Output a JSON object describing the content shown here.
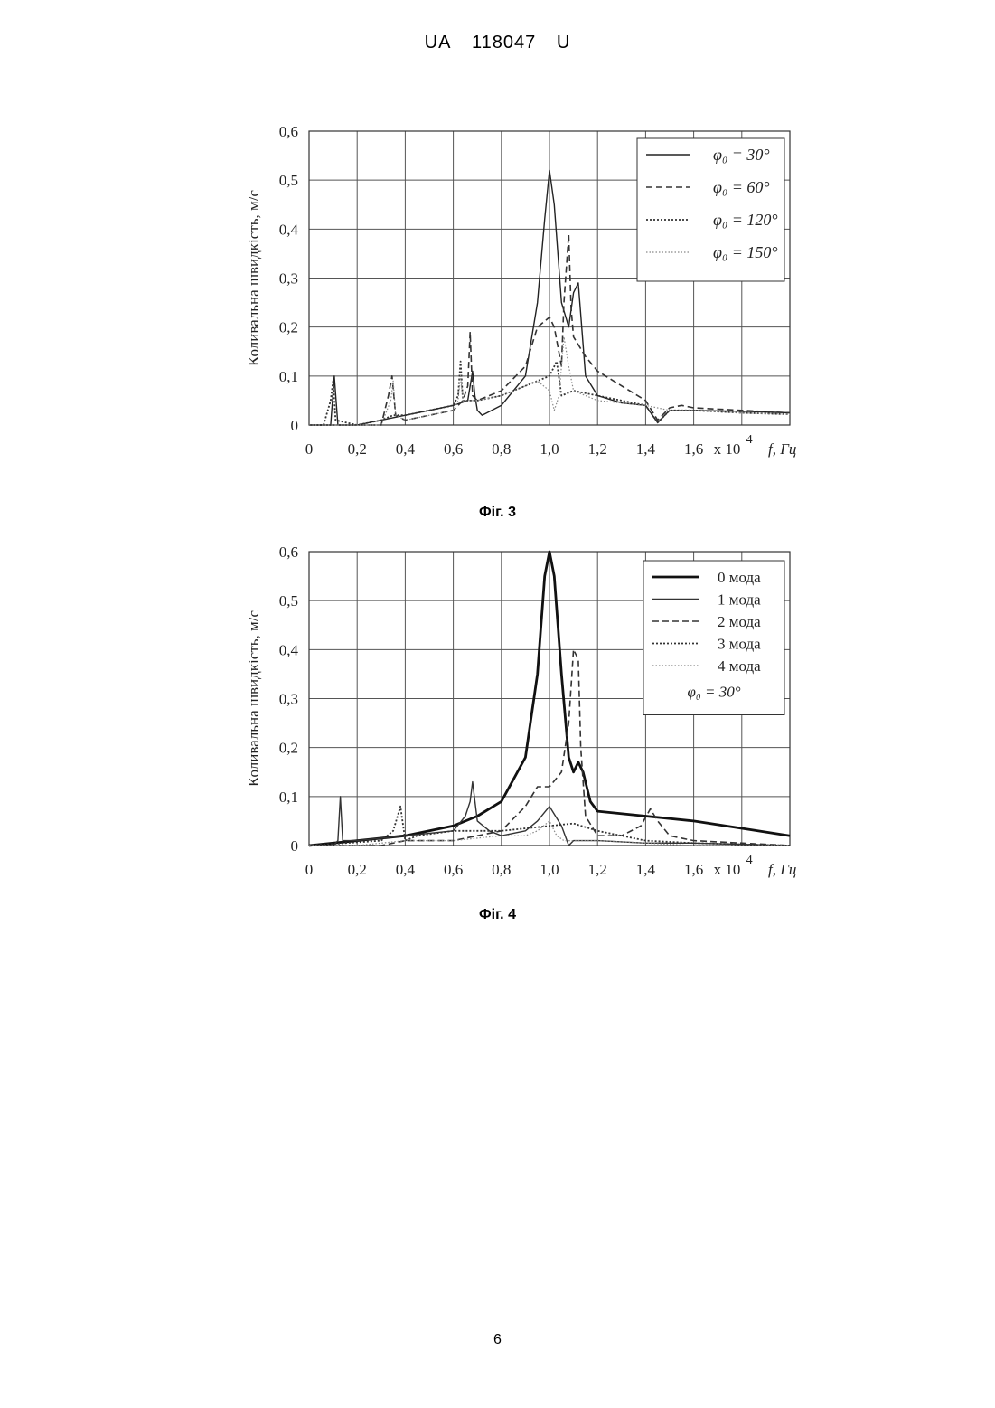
{
  "header": {
    "country": "UA",
    "number": "118047",
    "kind": "U"
  },
  "page_number": "6",
  "figures": [
    {
      "caption": "Фіг. 3"
    },
    {
      "caption": "Фіг. 4"
    }
  ],
  "chart_data": [
    {
      "type": "line",
      "title": "",
      "ylabel": "Коливальна швидкість, м/с",
      "xlabel": "f, Гц",
      "x_multiplier": "x 10",
      "x_multiplier_exp": "4",
      "xlim": [
        0,
        2.0
      ],
      "ylim": [
        0,
        0.6
      ],
      "grid": true,
      "legend_position": "top-right",
      "x_ticks": [
        "0",
        "0,2",
        "0,4",
        "0,6",
        "0,8",
        "1,0",
        "1,2",
        "1,4",
        "1,6"
      ],
      "y_ticks": [
        "0",
        "0,1",
        "0,2",
        "0,3",
        "0,4",
        "0,5",
        "0,6"
      ],
      "legend_note": "",
      "series": [
        {
          "name": "φ₀ = 30°",
          "style": "solid",
          "color": "#222222",
          "x": [
            0.0,
            0.09,
            0.105,
            0.12,
            0.2,
            0.3,
            0.4,
            0.5,
            0.6,
            0.66,
            0.68,
            0.69,
            0.7,
            0.72,
            0.8,
            0.9,
            0.95,
            0.98,
            1.0,
            1.02,
            1.05,
            1.08,
            1.1,
            1.12,
            1.15,
            1.2,
            1.3,
            1.4,
            1.45,
            1.5,
            1.6,
            1.8,
            2.0
          ],
          "y": [
            0.0,
            0.0,
            0.1,
            0.0,
            0.0,
            0.01,
            0.02,
            0.03,
            0.04,
            0.05,
            0.11,
            0.06,
            0.03,
            0.02,
            0.04,
            0.1,
            0.25,
            0.42,
            0.52,
            0.45,
            0.25,
            0.2,
            0.27,
            0.29,
            0.1,
            0.06,
            0.045,
            0.04,
            0.005,
            0.03,
            0.03,
            0.028,
            0.025
          ]
        },
        {
          "name": "φ₀ = 60°",
          "style": "dashed",
          "color": "#333333",
          "x": [
            0.0,
            0.3,
            0.33,
            0.345,
            0.36,
            0.4,
            0.5,
            0.6,
            0.64,
            0.66,
            0.67,
            0.68,
            0.7,
            0.8,
            0.9,
            0.95,
            1.0,
            1.02,
            1.05,
            1.06,
            1.08,
            1.09,
            1.1,
            1.15,
            1.2,
            1.3,
            1.4,
            1.45,
            1.5,
            1.55,
            1.6,
            1.8,
            2.0
          ],
          "y": [
            0.0,
            0.0,
            0.06,
            0.1,
            0.02,
            0.01,
            0.02,
            0.03,
            0.05,
            0.08,
            0.19,
            0.06,
            0.05,
            0.07,
            0.12,
            0.2,
            0.22,
            0.2,
            0.12,
            0.25,
            0.39,
            0.24,
            0.18,
            0.14,
            0.11,
            0.08,
            0.05,
            0.01,
            0.035,
            0.04,
            0.035,
            0.03,
            0.025
          ]
        },
        {
          "name": "φ₀ = 120°",
          "style": "dotted",
          "color": "#333333",
          "x": [
            0.0,
            0.06,
            0.09,
            0.1,
            0.11,
            0.2,
            0.3,
            0.35,
            0.4,
            0.5,
            0.6,
            0.62,
            0.63,
            0.64,
            0.7,
            0.8,
            0.9,
            1.0,
            1.03,
            1.05,
            1.1,
            1.2,
            1.3,
            1.4,
            1.45,
            1.5,
            1.6,
            1.8,
            2.0
          ],
          "y": [
            0.0,
            0.0,
            0.05,
            0.09,
            0.01,
            0.0,
            0.01,
            0.02,
            0.02,
            0.03,
            0.04,
            0.06,
            0.13,
            0.05,
            0.05,
            0.06,
            0.08,
            0.1,
            0.13,
            0.06,
            0.07,
            0.06,
            0.05,
            0.04,
            0.005,
            0.03,
            0.03,
            0.025,
            0.022
          ]
        },
        {
          "name": "φ₀ = 150°",
          "style": "dotted-light",
          "color": "#888888",
          "x": [
            0.0,
            0.3,
            0.34,
            0.35,
            0.36,
            0.4,
            0.5,
            0.6,
            0.62,
            0.63,
            0.64,
            0.7,
            0.8,
            0.9,
            0.95,
            1.0,
            1.02,
            1.04,
            1.06,
            1.08,
            1.1,
            1.2,
            1.3,
            1.4,
            1.5,
            1.6,
            1.8,
            2.0
          ],
          "y": [
            0.0,
            0.0,
            0.05,
            0.09,
            0.02,
            0.01,
            0.02,
            0.03,
            0.05,
            0.1,
            0.05,
            0.05,
            0.06,
            0.08,
            0.09,
            0.07,
            0.03,
            0.06,
            0.18,
            0.12,
            0.07,
            0.05,
            0.045,
            0.04,
            0.03,
            0.03,
            0.025,
            0.022
          ]
        }
      ]
    },
    {
      "type": "line",
      "title": "",
      "ylabel": "Коливальна швидкість, м/с",
      "xlabel": "f, Гц",
      "x_multiplier": "x 10",
      "x_multiplier_exp": "4",
      "xlim": [
        0,
        2.0
      ],
      "ylim": [
        0,
        0.6
      ],
      "grid": true,
      "legend_position": "top-right",
      "x_ticks": [
        "0",
        "0,2",
        "0,4",
        "0,6",
        "0,8",
        "1,0",
        "1,2",
        "1,4",
        "1,6"
      ],
      "y_ticks": [
        "0",
        "0,1",
        "0,2",
        "0,3",
        "0,4",
        "0,5",
        "0,6"
      ],
      "legend_note": "φ₀ = 30°",
      "series": [
        {
          "name": "0 мода",
          "style": "thick",
          "color": "#111111",
          "x": [
            0.0,
            0.2,
            0.4,
            0.6,
            0.7,
            0.8,
            0.9,
            0.95,
            0.98,
            1.0,
            1.02,
            1.05,
            1.08,
            1.1,
            1.12,
            1.14,
            1.17,
            1.2,
            1.4,
            1.6,
            1.8,
            2.0
          ],
          "y": [
            0.0,
            0.01,
            0.02,
            0.04,
            0.06,
            0.09,
            0.18,
            0.35,
            0.55,
            0.6,
            0.55,
            0.35,
            0.18,
            0.15,
            0.17,
            0.15,
            0.09,
            0.07,
            0.06,
            0.05,
            0.035,
            0.02
          ]
        },
        {
          "name": "1 мода",
          "style": "solid",
          "color": "#333333",
          "x": [
            0.0,
            0.1,
            0.12,
            0.13,
            0.14,
            0.2,
            0.4,
            0.6,
            0.65,
            0.67,
            0.68,
            0.7,
            0.75,
            0.8,
            0.9,
            0.95,
            1.0,
            1.05,
            1.08,
            1.1,
            1.2,
            1.4,
            1.6,
            2.0
          ],
          "y": [
            0.0,
            0.0,
            0.01,
            0.1,
            0.01,
            0.01,
            0.02,
            0.03,
            0.06,
            0.09,
            0.13,
            0.05,
            0.03,
            0.02,
            0.03,
            0.05,
            0.08,
            0.04,
            0.0,
            0.01,
            0.01,
            0.005,
            0.005,
            0.0
          ]
        },
        {
          "name": "2 мода",
          "style": "dashed",
          "color": "#333333",
          "x": [
            0.0,
            0.3,
            0.4,
            0.6,
            0.8,
            0.9,
            0.95,
            1.0,
            1.05,
            1.08,
            1.1,
            1.12,
            1.13,
            1.15,
            1.2,
            1.3,
            1.38,
            1.42,
            1.45,
            1.5,
            1.6,
            2.0
          ],
          "y": [
            0.0,
            0.0,
            0.01,
            0.01,
            0.03,
            0.08,
            0.12,
            0.12,
            0.15,
            0.25,
            0.4,
            0.38,
            0.2,
            0.06,
            0.02,
            0.02,
            0.04,
            0.075,
            0.05,
            0.02,
            0.01,
            0.0
          ]
        },
        {
          "name": "3 мода",
          "style": "dotted",
          "color": "#333333",
          "x": [
            0.0,
            0.3,
            0.35,
            0.38,
            0.4,
            0.45,
            0.6,
            0.8,
            1.0,
            1.1,
            1.2,
            1.3,
            1.4,
            1.6,
            2.0
          ],
          "y": [
            0.0,
            0.01,
            0.03,
            0.08,
            0.01,
            0.02,
            0.03,
            0.03,
            0.04,
            0.045,
            0.03,
            0.02,
            0.01,
            0.005,
            0.0
          ]
        },
        {
          "name": "4 мода",
          "style": "dotted-light",
          "color": "#888888",
          "x": [
            0.0,
            0.2,
            0.4,
            0.6,
            0.8,
            0.9,
            0.95,
            1.0,
            1.03,
            1.06,
            1.1,
            1.2,
            1.4,
            1.6,
            2.0
          ],
          "y": [
            0.0,
            0.0,
            0.01,
            0.01,
            0.02,
            0.02,
            0.03,
            0.05,
            0.02,
            0.01,
            0.01,
            0.01,
            0.005,
            0.0,
            0.0
          ]
        }
      ]
    }
  ]
}
